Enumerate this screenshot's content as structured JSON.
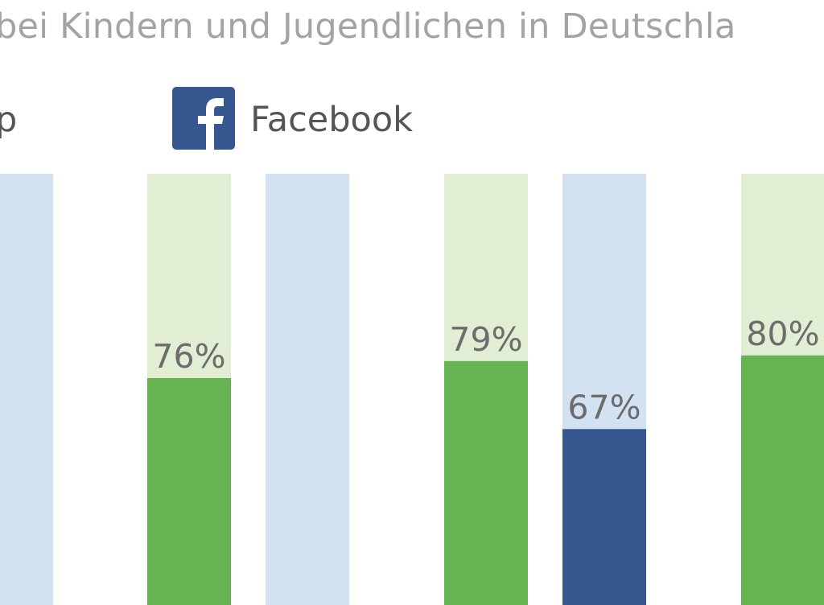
{
  "header": {
    "subtitle": "bei Kindern und Jugendlichen in Deutschla"
  },
  "legend": {
    "items": [
      {
        "label": "p",
        "icon": "whatsapp-icon",
        "color": "#66b451"
      },
      {
        "label": "Facebook",
        "icon": "facebook-icon",
        "color": "#36578f"
      }
    ]
  },
  "colors": {
    "green": "#66b451",
    "green_track": "#e2eed3",
    "blue": "#36578f",
    "blue_track": "#d3e2f1",
    "label": "#6c6c6c"
  },
  "chart_data": {
    "type": "bar",
    "ylim": [
      0,
      100
    ],
    "grid": false,
    "legend_position": "top",
    "bars": [
      {
        "series": "Facebook",
        "value": null,
        "label": ""
      },
      {
        "series": "WhatsApp",
        "value": 76,
        "label": "76%"
      },
      {
        "series": "Facebook",
        "value": null,
        "label": ""
      },
      {
        "series": "WhatsApp",
        "value": 79,
        "label": "79%"
      },
      {
        "series": "Facebook",
        "value": 67,
        "label": "67%"
      },
      {
        "series": "WhatsApp",
        "value": 80,
        "label": "80%"
      }
    ]
  }
}
